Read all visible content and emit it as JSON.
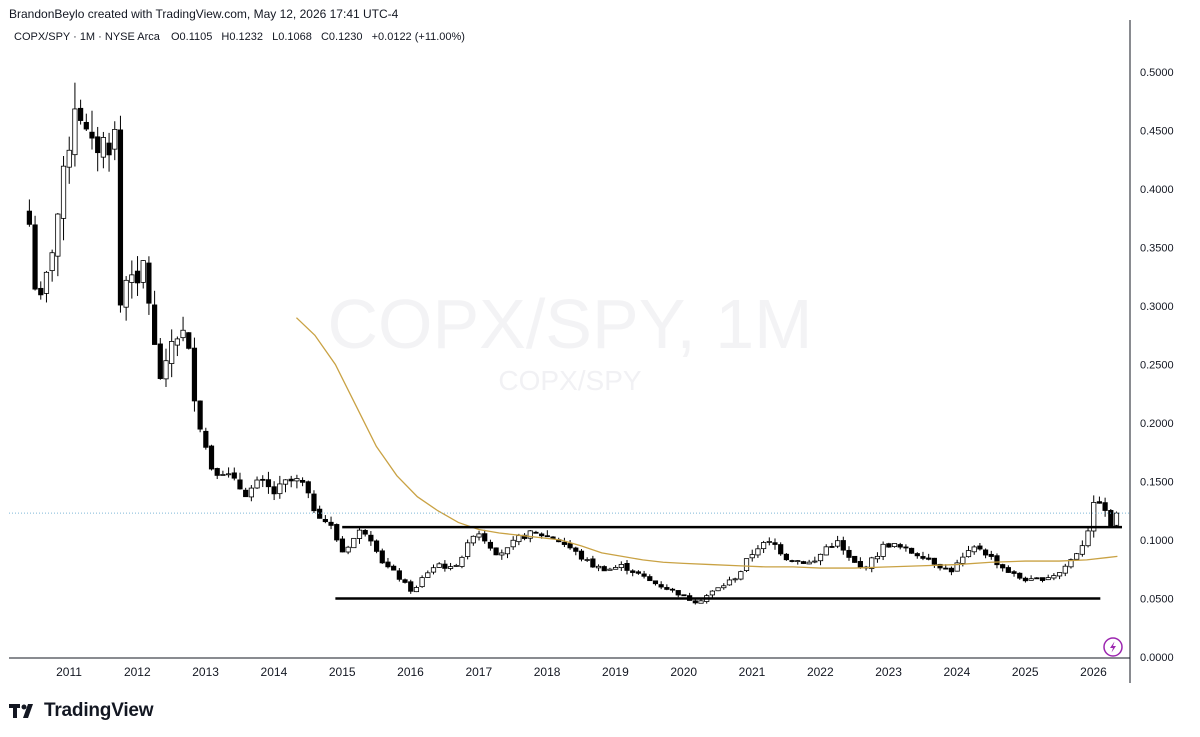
{
  "header": {
    "credit": "BrandonBeylo created with TradingView.com, May 12, 2026 17:41 UTC-4"
  },
  "legend": {
    "symbol": "COPX/SPY · 1M · NYSE Arca",
    "open_label": "O",
    "open": "0.1105",
    "high_label": "H",
    "high": "0.1232",
    "low_label": "L",
    "low": "0.1068",
    "close_label": "C",
    "close": "0.1230",
    "change": "+0.0122 (+11.00%)"
  },
  "watermark": {
    "main": "COPX/SPY, 1M",
    "sub": "COPX/SPY"
  },
  "branding": {
    "logo_text": "TradingView",
    "logo_icon": "tradingview-logo-icon",
    "bottom_icon": "lightning-icon"
  },
  "colors": {
    "up_candle": "#ffffff",
    "down_candle": "#000000",
    "moving_average": "#c9a244",
    "levels": "#000000",
    "price_line": "#7fb6d6"
  },
  "chart_data": {
    "type": "candlestick",
    "title": "",
    "xlabel": "",
    "ylabel": "",
    "ylim": [
      0,
      0.54
    ],
    "y_ticks": [
      "0.5000",
      "0.4500",
      "0.4000",
      "0.3500",
      "0.3000",
      "0.2500",
      "0.2000",
      "0.1500",
      "0.1000",
      "0.0500",
      "0.0000"
    ],
    "x_ticks": [
      "2011",
      "2012",
      "2013",
      "2014",
      "2015",
      "2016",
      "2017",
      "2018",
      "2019",
      "2020",
      "2021",
      "2022",
      "2023",
      "2024",
      "2025",
      "2026"
    ],
    "current_price": 0.123,
    "grid": false,
    "legend": "top-left",
    "horizontal_levels": [
      {
        "value": 0.111,
        "from": 2015.0,
        "to": 2026.45
      },
      {
        "value": 0.05,
        "from": 2014.9,
        "to": 2026.1
      }
    ],
    "moving_average": [
      [
        2014.33,
        0.29
      ],
      [
        2014.6,
        0.275
      ],
      [
        2014.9,
        0.25
      ],
      [
        2015.2,
        0.215
      ],
      [
        2015.5,
        0.18
      ],
      [
        2015.8,
        0.155
      ],
      [
        2016.1,
        0.137
      ],
      [
        2016.4,
        0.125
      ],
      [
        2016.7,
        0.115
      ],
      [
        2017.0,
        0.109
      ],
      [
        2017.3,
        0.106
      ],
      [
        2017.6,
        0.104
      ],
      [
        2017.9,
        0.102
      ],
      [
        2018.2,
        0.1
      ],
      [
        2018.5,
        0.095
      ],
      [
        2018.8,
        0.089
      ],
      [
        2019.1,
        0.086
      ],
      [
        2019.4,
        0.083
      ],
      [
        2019.7,
        0.081
      ],
      [
        2020.0,
        0.08
      ],
      [
        2020.4,
        0.079
      ],
      [
        2020.8,
        0.078
      ],
      [
        2021.2,
        0.077
      ],
      [
        2021.6,
        0.077
      ],
      [
        2022.0,
        0.076
      ],
      [
        2022.5,
        0.076
      ],
      [
        2023.0,
        0.077
      ],
      [
        2023.5,
        0.078
      ],
      [
        2024.0,
        0.079
      ],
      [
        2024.5,
        0.081
      ],
      [
        2025.0,
        0.082
      ],
      [
        2025.5,
        0.082
      ],
      [
        2025.9,
        0.083
      ],
      [
        2026.2,
        0.085
      ],
      [
        2026.35,
        0.086
      ]
    ],
    "monthly_close_anchors": [
      [
        2010.42,
        0.37
      ],
      [
        2010.5,
        0.32
      ],
      [
        2010.6,
        0.3
      ],
      [
        2010.75,
        0.35
      ],
      [
        2010.9,
        0.4
      ],
      [
        2011.0,
        0.44
      ],
      [
        2011.1,
        0.48
      ],
      [
        2011.2,
        0.46
      ],
      [
        2011.3,
        0.43
      ],
      [
        2011.45,
        0.44
      ],
      [
        2011.6,
        0.44
      ],
      [
        2011.7,
        0.45
      ],
      [
        2011.75,
        0.3
      ],
      [
        2011.9,
        0.34
      ],
      [
        2012.0,
        0.31
      ],
      [
        2012.1,
        0.34
      ],
      [
        2012.2,
        0.29
      ],
      [
        2012.3,
        0.24
      ],
      [
        2012.4,
        0.24
      ],
      [
        2012.5,
        0.27
      ],
      [
        2012.65,
        0.28
      ],
      [
        2012.75,
        0.26
      ],
      [
        2012.85,
        0.22
      ],
      [
        2012.95,
        0.19
      ],
      [
        2013.1,
        0.16
      ],
      [
        2013.25,
        0.16
      ],
      [
        2013.4,
        0.15
      ],
      [
        2013.6,
        0.14
      ],
      [
        2013.8,
        0.15
      ],
      [
        2014.0,
        0.14
      ],
      [
        2014.2,
        0.15
      ],
      [
        2014.4,
        0.15
      ],
      [
        2014.55,
        0.13
      ],
      [
        2014.7,
        0.12
      ],
      [
        2014.85,
        0.11
      ],
      [
        2015.0,
        0.09
      ],
      [
        2015.15,
        0.1
      ],
      [
        2015.3,
        0.11
      ],
      [
        2015.45,
        0.1
      ],
      [
        2015.6,
        0.08
      ],
      [
        2015.8,
        0.07
      ],
      [
        2015.95,
        0.06
      ],
      [
        2016.05,
        0.055
      ],
      [
        2016.2,
        0.07
      ],
      [
        2016.4,
        0.08
      ],
      [
        2016.6,
        0.075
      ],
      [
        2016.8,
        0.09
      ],
      [
        2016.95,
        0.11
      ],
      [
        2017.1,
        0.1
      ],
      [
        2017.25,
        0.09
      ],
      [
        2017.4,
        0.09
      ],
      [
        2017.55,
        0.1
      ],
      [
        2017.7,
        0.105
      ],
      [
        2017.9,
        0.105
      ],
      [
        2018.1,
        0.102
      ],
      [
        2018.3,
        0.095
      ],
      [
        2018.5,
        0.085
      ],
      [
        2018.7,
        0.077
      ],
      [
        2018.9,
        0.075
      ],
      [
        2019.1,
        0.078
      ],
      [
        2019.3,
        0.072
      ],
      [
        2019.5,
        0.065
      ],
      [
        2019.7,
        0.06
      ],
      [
        2019.9,
        0.055
      ],
      [
        2020.05,
        0.05
      ],
      [
        2020.2,
        0.047
      ],
      [
        2020.4,
        0.055
      ],
      [
        2020.6,
        0.062
      ],
      [
        2020.8,
        0.07
      ],
      [
        2020.95,
        0.085
      ],
      [
        2021.1,
        0.095
      ],
      [
        2021.3,
        0.098
      ],
      [
        2021.5,
        0.085
      ],
      [
        2021.7,
        0.082
      ],
      [
        2021.9,
        0.08
      ],
      [
        2022.1,
        0.095
      ],
      [
        2022.25,
        0.098
      ],
      [
        2022.4,
        0.085
      ],
      [
        2022.6,
        0.075
      ],
      [
        2022.8,
        0.085
      ],
      [
        2022.95,
        0.097
      ],
      [
        2023.1,
        0.095
      ],
      [
        2023.3,
        0.09
      ],
      [
        2023.5,
        0.087
      ],
      [
        2023.7,
        0.08
      ],
      [
        2023.9,
        0.073
      ],
      [
        2024.1,
        0.085
      ],
      [
        2024.3,
        0.095
      ],
      [
        2024.5,
        0.085
      ],
      [
        2024.7,
        0.075
      ],
      [
        2024.9,
        0.068
      ],
      [
        2025.1,
        0.065
      ],
      [
        2025.3,
        0.068
      ],
      [
        2025.5,
        0.072
      ],
      [
        2025.7,
        0.085
      ],
      [
        2025.85,
        0.098
      ],
      [
        2025.95,
        0.115
      ],
      [
        2026.05,
        0.14
      ],
      [
        2026.15,
        0.125
      ],
      [
        2026.25,
        0.112
      ],
      [
        2026.33,
        0.123
      ]
    ]
  }
}
